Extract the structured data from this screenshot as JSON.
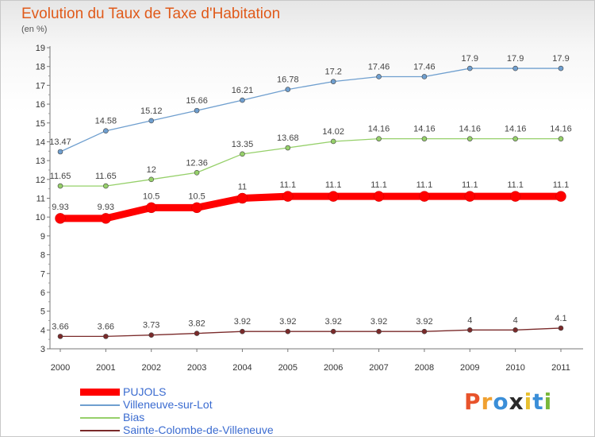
{
  "header": {
    "title": "Evolution du Taux de Taxe d'Habitation",
    "unit": "(en %)"
  },
  "logo": {
    "text": "Proxiti",
    "letters": [
      "P",
      "r",
      "o",
      "x",
      "i",
      "t",
      "i"
    ],
    "colors": [
      "#e8532b",
      "#f0a030",
      "#3a8ed8",
      "#2a2a2a",
      "#e8c030",
      "#3a8ed8",
      "#7ab83a"
    ]
  },
  "chart_data": {
    "type": "line",
    "categories": [
      "2000",
      "2001",
      "2002",
      "2003",
      "2004",
      "2005",
      "2006",
      "2007",
      "2008",
      "2009",
      "2010",
      "2011"
    ],
    "ylim": [
      3,
      19
    ],
    "yticks": [
      "3",
      "4",
      "5",
      "6",
      "7",
      "8",
      "9",
      "10",
      "11",
      "12",
      "13",
      "14",
      "15",
      "16",
      "17",
      "18",
      "19"
    ],
    "grid": false,
    "legend_position": "bottom-left",
    "series": [
      {
        "name": "Villeneuve-sur-Lot",
        "color": "#6f9fcf",
        "values": [
          13.47,
          14.58,
          15.12,
          15.66,
          16.21,
          16.78,
          17.2,
          17.46,
          17.46,
          17.9,
          17.9,
          17.9
        ],
        "labels": [
          "13.47",
          "14.58",
          "15.12",
          "15.66",
          "16.21",
          "16.78",
          "17.2",
          "17.46",
          "17.46",
          "17.9",
          "17.9",
          "17.9"
        ]
      },
      {
        "name": "Bias",
        "color": "#96d06a",
        "values": [
          11.65,
          11.65,
          12,
          12.36,
          13.35,
          13.68,
          14.02,
          14.16,
          14.16,
          14.16,
          14.16,
          14.16
        ],
        "labels": [
          "11.65",
          "11.65",
          "12",
          "12.36",
          "13.35",
          "13.68",
          "14.02",
          "14.16",
          "14.16",
          "14.16",
          "14.16",
          "14.16"
        ]
      },
      {
        "name": "PUJOLS",
        "color": "#ff0000",
        "values": [
          9.93,
          9.93,
          10.5,
          10.5,
          11,
          11.1,
          11.1,
          11.1,
          11.1,
          11.1,
          11.1,
          11.1
        ],
        "labels": [
          "9.93",
          "9.93",
          "10.5",
          "10.5",
          "11",
          "11.1",
          "11.1",
          "11.1",
          "11.1",
          "11.1",
          "11.1",
          "11.1"
        ]
      },
      {
        "name": "Sainte-Colombe-de-Villeneuve",
        "color": "#7a2a2a",
        "values": [
          3.66,
          3.66,
          3.73,
          3.82,
          3.92,
          3.92,
          3.92,
          3.92,
          3.92,
          4,
          4,
          4.1
        ],
        "labels": [
          "3.66",
          "3.66",
          "3.73",
          "3.82",
          "3.92",
          "3.92",
          "3.92",
          "3.92",
          "3.92",
          "4",
          "4",
          "4.1"
        ]
      }
    ],
    "legend": [
      {
        "name": "PUJOLS",
        "color": "#ff0000"
      },
      {
        "name": "Villeneuve-sur-Lot",
        "color": "#6f9fcf"
      },
      {
        "name": "Bias",
        "color": "#96d06a"
      },
      {
        "name": "Sainte-Colombe-de-Villeneuve",
        "color": "#7a2a2a"
      }
    ]
  }
}
